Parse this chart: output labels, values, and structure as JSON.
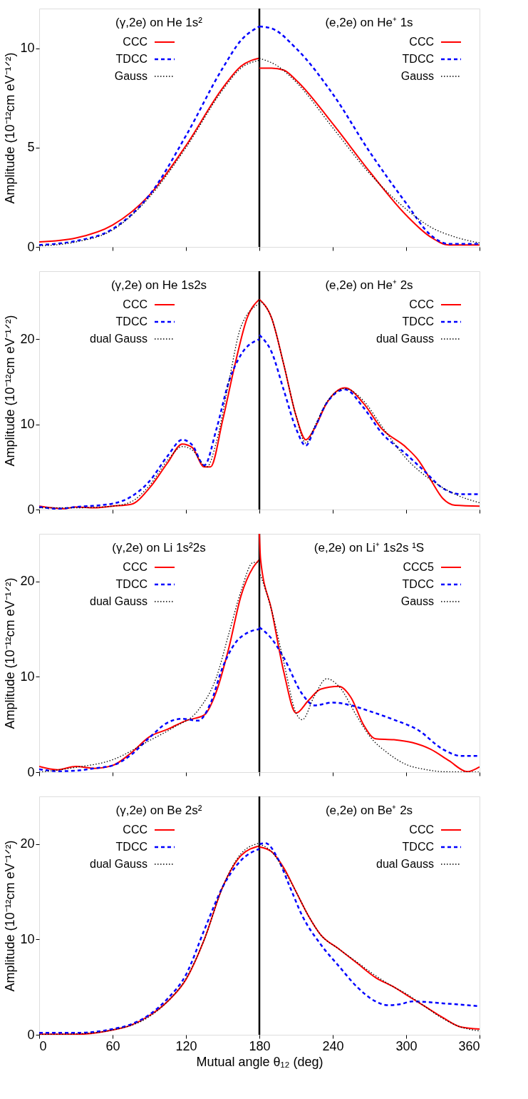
{
  "chart_data": [
    {
      "type": "line",
      "ylabel": "Amplitude (10⁻¹²cm eV⁻¹ᐟ²)",
      "annotations": [
        "(γ,2e) on He 1s²",
        "(e,2e) on  He⁺ 1s"
      ],
      "xlim": [
        0,
        360
      ],
      "xticks": [
        0,
        60,
        120,
        180,
        240,
        300,
        360
      ],
      "ylim": [
        0,
        12
      ],
      "yticks": [
        0,
        5,
        10
      ],
      "tick_labels": "y",
      "legend": "top",
      "grid": false,
      "ref_lines": [
        {
          "axis": "x",
          "value": 180,
          "color": "#000000"
        }
      ],
      "series": [
        {
          "name": "CCC",
          "color": "#ff0000",
          "line_style": "solid",
          "x": [
            0,
            30,
            60,
            90,
            120,
            150,
            165,
            180
          ],
          "values": [
            0.25,
            0.45,
            1.1,
            2.6,
            5.1,
            8.0,
            9.1,
            9.5
          ]
        },
        {
          "name": "TDCC",
          "color": "#0000ff",
          "line_style": "dashed",
          "x": [
            0,
            30,
            60,
            90,
            120,
            150,
            165,
            180
          ],
          "values": [
            0.1,
            0.3,
            0.9,
            2.6,
            5.6,
            9.0,
            10.4,
            11.1
          ]
        },
        {
          "name": "Gauss",
          "color": "#000000",
          "line_style": "dotted",
          "x": [
            0,
            30,
            60,
            90,
            120,
            150,
            165,
            180
          ],
          "values": [
            0.05,
            0.25,
            0.85,
            2.5,
            5.0,
            7.9,
            9.0,
            9.4
          ]
        },
        {
          "name": "CCC",
          "color": "#ff0000",
          "line_style": "solid",
          "x": [
            180,
            190,
            200,
            210,
            240,
            270,
            300,
            320,
            335,
            360
          ],
          "values": [
            9.0,
            9.0,
            8.9,
            8.4,
            6.2,
            3.8,
            1.6,
            0.5,
            0.1,
            0.1
          ]
        },
        {
          "name": "TDCC",
          "color": "#0000ff",
          "line_style": "dashed",
          "x": [
            180,
            190,
            210,
            240,
            270,
            300,
            320,
            335,
            360
          ],
          "values": [
            11.1,
            11.0,
            10.0,
            7.7,
            4.8,
            2.2,
            0.6,
            0.15,
            0.15
          ]
        },
        {
          "name": "Gauss",
          "color": "#000000",
          "line_style": "dotted",
          "x": [
            180,
            195,
            210,
            240,
            270,
            300,
            320,
            340,
            360
          ],
          "values": [
            9.5,
            9.1,
            8.3,
            6.0,
            3.7,
            1.9,
            1.0,
            0.5,
            0.2
          ]
        }
      ]
    },
    {
      "type": "line",
      "ylabel": "Amplitude (10⁻¹²cm eV⁻¹ᐟ²)",
      "annotations": [
        "(γ,2e) on He 1s2s",
        "(e,2e) on  He⁺ 2s"
      ],
      "xlim": [
        0,
        360
      ],
      "xticks": [
        0,
        60,
        120,
        180,
        240,
        300,
        360
      ],
      "ylim": [
        0,
        28
      ],
      "yticks": [
        0,
        10,
        20
      ],
      "tick_labels": "y",
      "legend": "top",
      "grid": false,
      "ref_lines": [
        {
          "axis": "x",
          "value": 180,
          "color": "#000000"
        }
      ],
      "series": [
        {
          "name": "CCC",
          "color": "#ff0000",
          "line_style": "solid",
          "x": [
            0,
            10,
            20,
            30,
            45,
            60,
            75,
            90,
            105,
            117,
            125,
            135,
            140,
            150,
            160,
            170,
            180
          ],
          "values": [
            0.4,
            0.2,
            0.1,
            0.3,
            0.2,
            0.4,
            0.6,
            2.5,
            5.5,
            7.7,
            7.3,
            5.0,
            5.0,
            10.5,
            17,
            22.5,
            24.7
          ]
        },
        {
          "name": "TDCC",
          "color": "#0000ff",
          "line_style": "dashed",
          "x": [
            0,
            15,
            30,
            60,
            75,
            90,
            105,
            117,
            125,
            135,
            145,
            155,
            165,
            180
          ],
          "values": [
            0.3,
            0.1,
            0.3,
            0.7,
            1.5,
            3.3,
            6.3,
            8.2,
            7.6,
            5.2,
            9.5,
            15,
            18.2,
            20.0
          ]
        },
        {
          "name": "dual Gauss",
          "color": "#000000",
          "line_style": "dotted",
          "x": [
            0,
            30,
            60,
            75,
            90,
            105,
            117,
            125,
            137,
            145,
            155,
            165,
            180
          ],
          "values": [
            0.2,
            0.2,
            0.4,
            0.9,
            2.8,
            5.8,
            7.4,
            7.0,
            5.0,
            8,
            15,
            21.5,
            24.2
          ]
        },
        {
          "name": "CCC",
          "color": "#ff0000",
          "line_style": "solid",
          "x": [
            180,
            190,
            200,
            210,
            218,
            225,
            235,
            250,
            265,
            280,
            300,
            310,
            320,
            330,
            340,
            360
          ],
          "values": [
            24.7,
            22.5,
            17,
            11,
            8.2,
            9.5,
            12.5,
            14.3,
            12.5,
            9.5,
            7.3,
            5.8,
            3.5,
            1.3,
            0.5,
            0.4
          ]
        },
        {
          "name": "TDCC",
          "color": "#0000ff",
          "line_style": "dashed",
          "x": [
            180,
            190,
            200,
            210,
            218,
            225,
            235,
            250,
            265,
            280,
            300,
            315,
            330,
            345,
            360
          ],
          "values": [
            20.5,
            18.5,
            14,
            9.5,
            7.5,
            9.5,
            12.5,
            14.1,
            12.0,
            9.0,
            6.5,
            4.5,
            2.5,
            1.8,
            1.8
          ]
        },
        {
          "name": "dual Gauss",
          "color": "#000000",
          "line_style": "dotted",
          "x": [
            180,
            190,
            200,
            210,
            218,
            225,
            235,
            250,
            265,
            280,
            300,
            320,
            340,
            360
          ],
          "values": [
            24.6,
            22.5,
            17,
            11,
            7.8,
            9.7,
            12.6,
            14.2,
            12.8,
            9.8,
            6.0,
            3.5,
            1.8,
            0.8
          ]
        }
      ]
    },
    {
      "type": "line",
      "ylabel": "Amplitude (10⁻¹²cm eV⁻¹ᐟ²)",
      "annotations": [
        "(γ,2e) on Li 1s²2s",
        "(e,2e) on  Li⁺ 1s2s ¹S"
      ],
      "xlim": [
        0,
        360
      ],
      "xticks": [
        0,
        60,
        120,
        180,
        240,
        300,
        360
      ],
      "ylim": [
        0,
        25
      ],
      "yticks": [
        0,
        10,
        20
      ],
      "tick_labels": "y",
      "legend": "top",
      "grid": false,
      "ref_lines": [
        {
          "axis": "x",
          "value": 180,
          "color": "#000000"
        }
      ],
      "series": [
        {
          "name": "CCC",
          "color": "#ff0000",
          "line_style": "solid",
          "x": [
            0,
            15,
            30,
            45,
            60,
            75,
            90,
            105,
            120,
            135,
            145,
            155,
            165,
            175,
            180
          ],
          "values": [
            0.6,
            0.25,
            0.6,
            0.4,
            0.7,
            2,
            3.7,
            4.5,
            5.4,
            6.0,
            8.5,
            13,
            18.5,
            21.5,
            22.3
          ]
        },
        {
          "name": "TDCC",
          "color": "#0000ff",
          "line_style": "dashed",
          "x": [
            0,
            15,
            30,
            45,
            60,
            75,
            90,
            105,
            117,
            130,
            140,
            150,
            160,
            170,
            180
          ],
          "values": [
            0.3,
            0.1,
            0.15,
            0.4,
            0.7,
            1.8,
            3.6,
            5.2,
            5.6,
            5.4,
            7.2,
            11,
            13.5,
            14.6,
            15.0
          ]
        },
        {
          "name": "dual Gauss",
          "color": "#000000",
          "line_style": "dotted",
          "x": [
            0,
            30,
            60,
            90,
            110,
            130,
            145,
            155,
            165,
            175,
            180
          ],
          "values": [
            0,
            0.5,
            1.3,
            3.3,
            4.7,
            6.5,
            10,
            14.5,
            19,
            22,
            22.0
          ]
        },
        {
          "name": "CCC5",
          "color": "#ff0000",
          "line_style": "solid",
          "x": [
            180,
            181,
            190,
            200,
            210,
            220,
            230,
            245,
            255,
            265,
            275,
            290,
            305,
            320,
            335,
            350,
            360
          ],
          "values": [
            25,
            22.3,
            17,
            10.5,
            6.2,
            7.5,
            8.7,
            9.0,
            7.8,
            5.0,
            3.5,
            3.4,
            3.1,
            2.4,
            1.2,
            0.05,
            0.55
          ]
        },
        {
          "name": "TDCC",
          "color": "#0000ff",
          "line_style": "dashed",
          "x": [
            180,
            190,
            200,
            215,
            225,
            240,
            255,
            270,
            290,
            310,
            330,
            345,
            360
          ],
          "values": [
            15.2,
            14.0,
            12,
            8.2,
            7.0,
            7.3,
            7.0,
            6.4,
            5.5,
            4.4,
            2.4,
            1.7,
            1.7
          ]
        },
        {
          "name": "Gauss",
          "color": "#000000",
          "line_style": "dotted",
          "x": [
            180,
            190,
            200,
            210,
            215,
            225,
            235,
            245,
            260,
            270,
            285,
            300,
            315,
            330,
            360
          ],
          "values": [
            21,
            17,
            11.5,
            6.2,
            5.5,
            8,
            9.8,
            9.0,
            5.8,
            3.8,
            2,
            0.8,
            0.3,
            0.05,
            0
          ]
        }
      ]
    },
    {
      "type": "line",
      "xlabel": "Mutual angle θ₁₂ (deg)",
      "ylabel": "Amplitude (10⁻¹²cm eV⁻¹ᐟ²)",
      "annotations": [
        "(γ,2e) on Be 2s²",
        "(e,2e) on  Be⁺ 2s"
      ],
      "xlim": [
        0,
        360
      ],
      "xticks": [
        0,
        60,
        120,
        180,
        240,
        300,
        360
      ],
      "ylim": [
        0,
        25
      ],
      "yticks": [
        0,
        10,
        20
      ],
      "legend": "top",
      "grid": false,
      "ref_lines": [
        {
          "axis": "x",
          "value": 180,
          "color": "#000000"
        }
      ],
      "series": [
        {
          "name": "CCC",
          "color": "#ff0000",
          "line_style": "solid",
          "x": [
            0,
            30,
            60,
            75,
            90,
            105,
            120,
            135,
            150,
            165,
            180
          ],
          "values": [
            0.05,
            0.05,
            0.5,
            1.0,
            2.0,
            3.5,
            5.8,
            10,
            15.5,
            18.8,
            19.8
          ]
        },
        {
          "name": "TDCC",
          "color": "#0000ff",
          "line_style": "dashed",
          "x": [
            0,
            30,
            60,
            75,
            90,
            105,
            120,
            135,
            150,
            165,
            180
          ],
          "values": [
            0.2,
            0.2,
            0.6,
            1.1,
            2.1,
            3.8,
            6.3,
            11,
            15.5,
            18.3,
            19.5
          ]
        },
        {
          "name": "dual Gauss",
          "color": "#000000",
          "line_style": "dotted",
          "x": [
            0,
            30,
            60,
            90,
            105,
            120,
            135,
            150,
            165,
            180
          ],
          "values": [
            0.05,
            0.1,
            0.5,
            1.9,
            3.5,
            5.9,
            10,
            15.5,
            19.0,
            20.1
          ]
        },
        {
          "name": "CCC",
          "color": "#ff0000",
          "line_style": "solid",
          "x": [
            180,
            190,
            200,
            210,
            220,
            230,
            245,
            260,
            275,
            290,
            300,
            315,
            330,
            345,
            360
          ],
          "values": [
            19.7,
            19.2,
            17.5,
            15,
            12.5,
            10.5,
            9.0,
            7.5,
            6.0,
            5.0,
            4.2,
            3.0,
            1.8,
            0.8,
            0.6
          ]
        },
        {
          "name": "TDCC",
          "color": "#0000ff",
          "line_style": "dashed",
          "x": [
            180,
            185,
            195,
            205,
            215,
            230,
            245,
            260,
            275,
            285,
            295,
            305,
            330,
            360
          ],
          "values": [
            20.0,
            20.1,
            18.5,
            15.5,
            12.5,
            9.5,
            7.2,
            5.0,
            3.5,
            3.1,
            3.2,
            3.5,
            3.3,
            3.0
          ]
        },
        {
          "name": "dual Gauss",
          "color": "#000000",
          "line_style": "dotted",
          "x": [
            180,
            190,
            200,
            210,
            220,
            230,
            245,
            260,
            275,
            290,
            300,
            315,
            330,
            345,
            360
          ],
          "values": [
            20,
            19.2,
            17.3,
            15,
            12.5,
            10.5,
            9.0,
            7.6,
            6.2,
            5.0,
            4.3,
            3.0,
            1.7,
            0.8,
            0.4
          ]
        }
      ]
    }
  ]
}
